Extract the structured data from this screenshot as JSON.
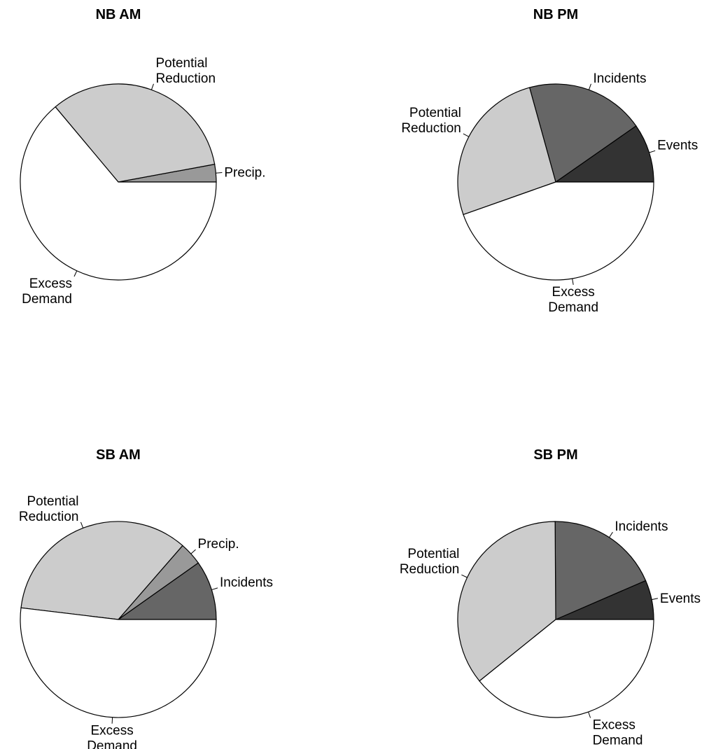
{
  "chart_data": [
    {
      "type": "pie",
      "title": "NB AM",
      "slices": [
        {
          "label": [
            "Precip."
          ],
          "value": 2.9,
          "color": "#999999"
        },
        {
          "label": [
            "Potential",
            "Reduction"
          ],
          "value": 33.2,
          "color": "#cccccc"
        },
        {
          "label": [
            "Excess",
            "Demand"
          ],
          "value": 63.9,
          "color": "#ffffff"
        }
      ]
    },
    {
      "type": "pie",
      "title": "NB PM",
      "slices": [
        {
          "label": [
            "Events"
          ],
          "value": 9.7,
          "color": "#333333"
        },
        {
          "label": [
            "Incidents"
          ],
          "value": 19.6,
          "color": "#666666"
        },
        {
          "label": [
            "Potential",
            "Reduction"
          ],
          "value": 26.1,
          "color": "#cccccc"
        },
        {
          "label": [
            "Excess",
            "Demand"
          ],
          "value": 44.6,
          "color": "#ffffff"
        }
      ]
    },
    {
      "type": "pie",
      "title": "SB AM",
      "slices": [
        {
          "label": [
            "Incidents"
          ],
          "value": 9.8,
          "color": "#666666"
        },
        {
          "label": [
            "Precip."
          ],
          "value": 3.8,
          "color": "#999999"
        },
        {
          "label": [
            "Potential",
            "Reduction"
          ],
          "value": 34.5,
          "color": "#cccccc"
        },
        {
          "label": [
            "Excess",
            "Demand"
          ],
          "value": 51.9,
          "color": "#ffffff"
        }
      ]
    },
    {
      "type": "pie",
      "title": "SB PM",
      "slices": [
        {
          "label": [
            "Events"
          ],
          "value": 6.5,
          "color": "#333333"
        },
        {
          "label": [
            "Incidents"
          ],
          "value": 18.6,
          "color": "#666666"
        },
        {
          "label": [
            "Potential",
            "Reduction"
          ],
          "value": 35.7,
          "color": "#cccccc"
        },
        {
          "label": [
            "Excess",
            "Demand"
          ],
          "value": 39.2,
          "color": "#ffffff"
        }
      ]
    }
  ]
}
